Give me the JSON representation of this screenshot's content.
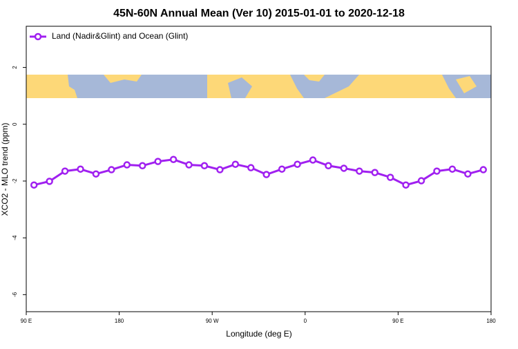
{
  "chart_data": {
    "type": "line",
    "title": "45N-60N Annual Mean (Ver 10)   2015-01-01 to 2020-12-18",
    "x_label": "Longitude (deg E)",
    "y_label": "XCO2 - MLO trend (ppm)",
    "x": [
      97.5,
      112.5,
      127.5,
      142.5,
      157.5,
      172.5,
      187.5,
      202.5,
      217.5,
      232.5,
      247.5,
      262.5,
      277.5,
      292.5,
      307.5,
      322.5,
      337.5,
      352.5,
      367.5,
      382.5,
      397.5,
      412.5,
      427.5,
      442.5,
      457.5,
      472.5,
      487.5,
      502.5,
      517.5,
      532.5
    ],
    "series": [
      {
        "name": "Land (Nadir&Glint) and Ocean (Glint)",
        "color": "#a020f0",
        "values": [
          -2.14,
          -2.01,
          -1.65,
          -1.58,
          -1.75,
          -1.6,
          -1.43,
          -1.46,
          -1.31,
          -1.24,
          -1.43,
          -1.46,
          -1.6,
          -1.41,
          -1.53,
          -1.77,
          -1.58,
          -1.41,
          -1.26,
          -1.46,
          -1.55,
          -1.65,
          -1.7,
          -1.87,
          -2.14,
          -1.99,
          -1.65,
          -1.58,
          -1.75,
          -1.6
        ]
      }
    ],
    "xlim": [
      90,
      540
    ],
    "xticks": [
      {
        "value": 90,
        "label": "90 E"
      },
      180,
      {
        "value": 270,
        "label": "90 W"
      },
      {
        "value": 360,
        "label": "0"
      },
      {
        "value": 450,
        "label": "90 E"
      },
      {
        "value": 540,
        "label": "180"
      }
    ],
    "ylim": [
      -6.6,
      3.45
    ],
    "yticks": [
      -6,
      -4,
      -2,
      0,
      2
    ],
    "legend": "top-left"
  }
}
